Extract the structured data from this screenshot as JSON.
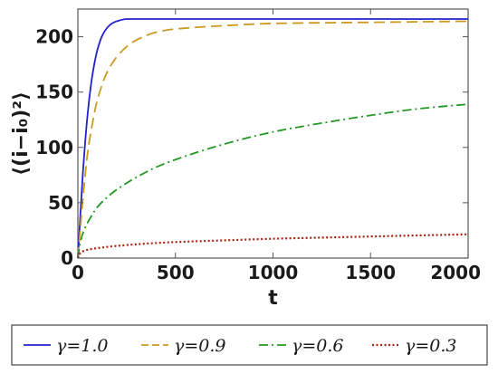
{
  "chart_data": {
    "type": "line",
    "xlabel": "t",
    "ylabel": "⟨(i−i₀)²⟩",
    "xlim": [
      0,
      2000
    ],
    "ylim": [
      0,
      225
    ],
    "xticks": [
      0,
      500,
      1000,
      1500,
      2000
    ],
    "yticks": [
      0,
      50,
      100,
      150,
      200
    ],
    "grid": false,
    "legend_position": "bottom",
    "series": [
      {
        "name": "γ=1.0",
        "color": "#2222cc",
        "style": "solid",
        "x": [
          0,
          25,
          50,
          75,
          100,
          125,
          150,
          175,
          200,
          250,
          300,
          400,
          500,
          1000,
          1500,
          2000
        ],
        "y": [
          0,
          75,
          130,
          166,
          188,
          201,
          208,
          212,
          214,
          216,
          216,
          216,
          216,
          216,
          216,
          216
        ]
      },
      {
        "name": "γ=0.9",
        "color": "#cc9922",
        "style": "dashed",
        "x": [
          0,
          25,
          50,
          75,
          100,
          150,
          200,
          250,
          300,
          400,
          500,
          750,
          1000,
          1500,
          2000
        ],
        "y": [
          0,
          52,
          95,
          122,
          143,
          168,
          182,
          191,
          197,
          204,
          207,
          210,
          212,
          213,
          214
        ]
      },
      {
        "name": "γ=0.6",
        "color": "#229922",
        "style": "dashdot",
        "x": [
          0,
          10,
          25,
          50,
          100,
          150,
          200,
          300,
          400,
          500,
          750,
          1000,
          1250,
          1500,
          1750,
          2000
        ],
        "y": [
          0,
          12,
          22,
          32,
          46,
          55,
          62,
          73,
          82,
          89,
          103,
          114,
          122,
          129,
          135,
          139
        ]
      },
      {
        "name": "γ=0.3",
        "color": "#aa2211",
        "style": "dotted",
        "x": [
          0,
          10,
          25,
          50,
          100,
          200,
          300,
          500,
          750,
          1000,
          1250,
          1500,
          1750,
          2000
        ],
        "y": [
          0,
          4,
          6,
          7.5,
          9,
          11,
          12.5,
          14.5,
          16,
          17.5,
          18.5,
          19.5,
          20.5,
          21.5
        ]
      }
    ]
  }
}
